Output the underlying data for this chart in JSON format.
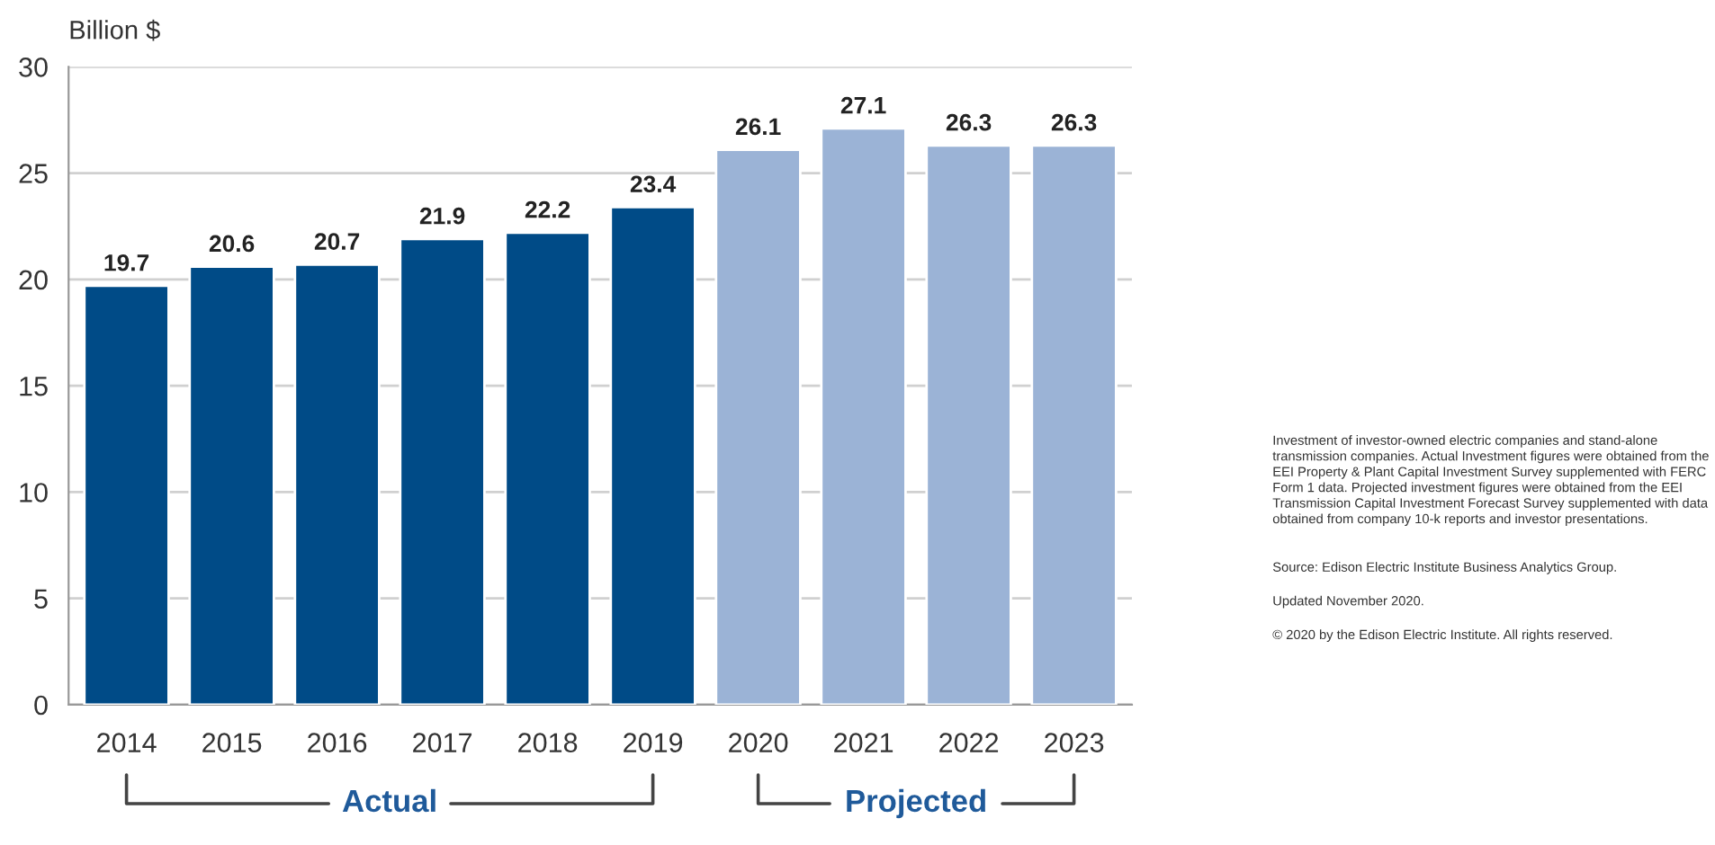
{
  "chart_data": {
    "type": "bar",
    "ylabel": "Billion $",
    "categories": [
      "2014",
      "2015",
      "2016",
      "2017",
      "2018",
      "2019",
      "2020",
      "2021",
      "2022",
      "2023"
    ],
    "values": [
      19.7,
      20.6,
      20.7,
      21.9,
      22.2,
      23.4,
      26.1,
      27.1,
      26.3,
      26.3
    ],
    "colors": [
      "#004b87",
      "#004b87",
      "#004b87",
      "#004b87",
      "#004b87",
      "#004b87",
      "#9bb3d6",
      "#9bb3d6",
      "#9bb3d6",
      "#9bb3d6"
    ],
    "data_labels": true,
    "ylim": [
      0,
      30
    ],
    "yticks": [
      0,
      5,
      10,
      15,
      20,
      25,
      30
    ],
    "grid": "y",
    "annotations": [
      "Actual",
      "Projected",
      "Investment of investor-owned electric companies and stand-alone transmission companies. Actual Investment figures were obtained from the EEI Property & Plant Capital Investment Survey supplemented with FERC Form 1 data. Projected investment figures were obtained from the EEI Transmission Capital Investment Forecast Survey supplemented with data obtained from company 10-k reports and investor presentations.",
      "Source: Edison Electric Institute Business Analytics Group.",
      "Updated November 2020.",
      "© 2020 by the Edison Electric Institute. All rights reserved."
    ]
  }
}
